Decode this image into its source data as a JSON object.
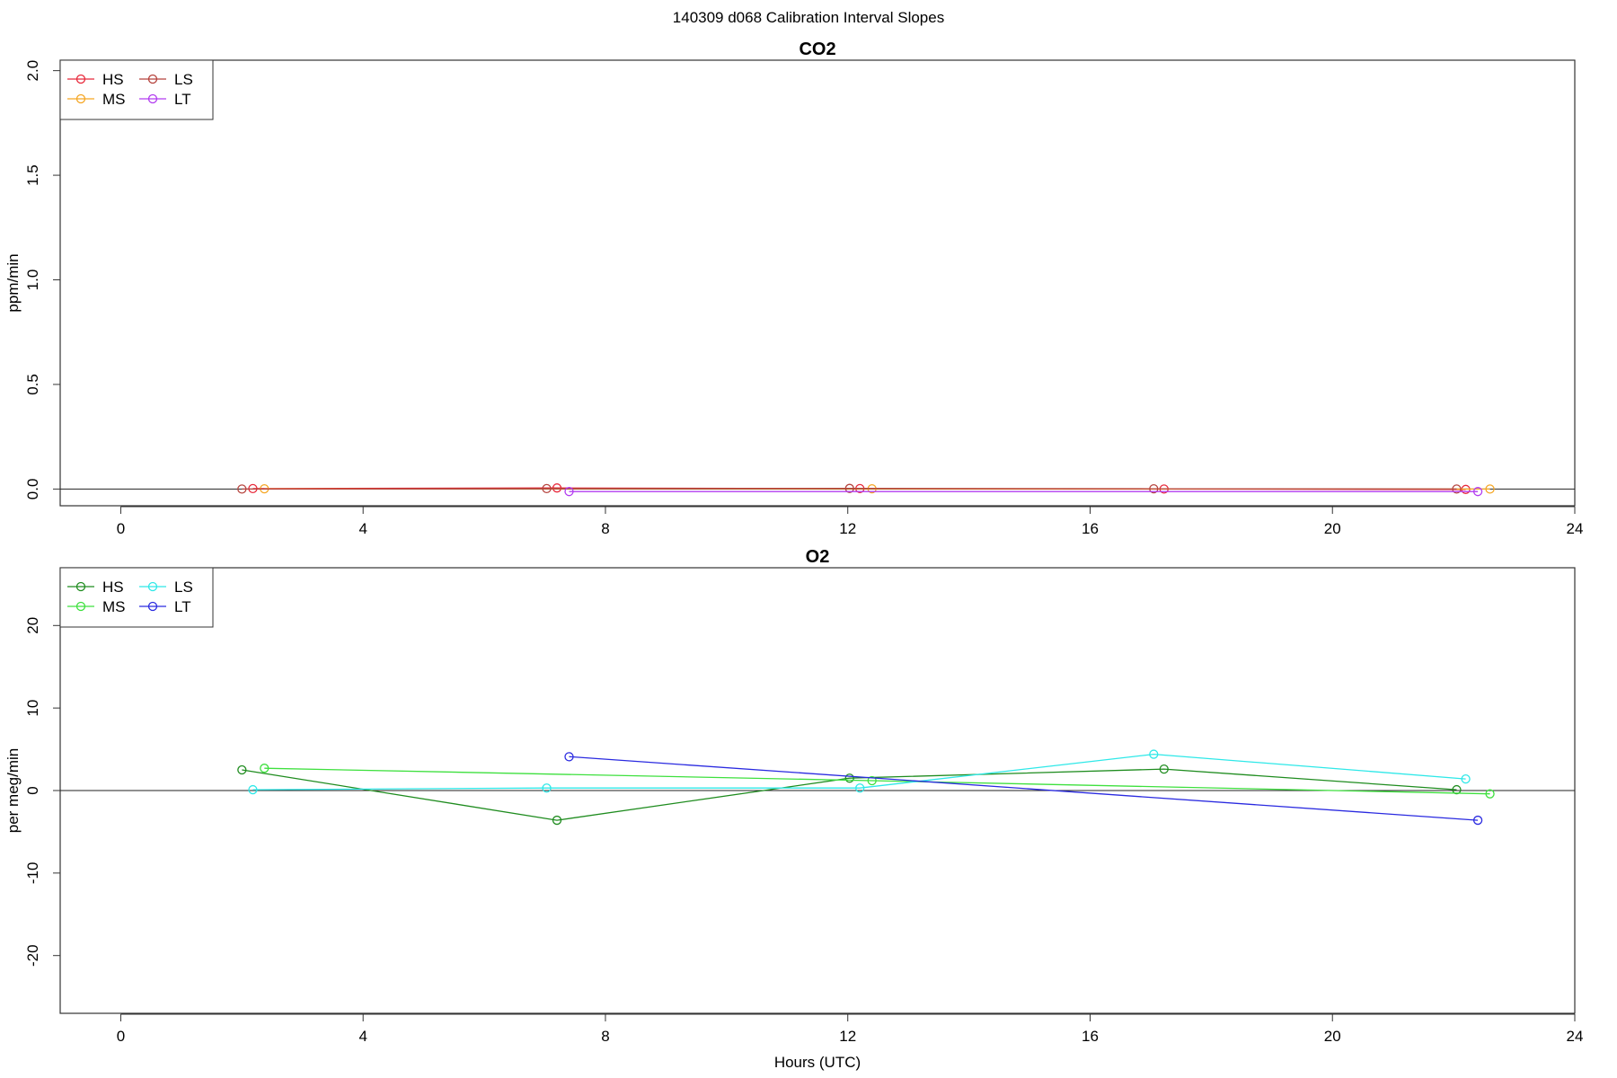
{
  "page_title": "140309   d068   Calibration Interval Slopes",
  "chart_data": [
    {
      "type": "line",
      "title": "CO2",
      "xlabel": "",
      "ylabel": "ppm/min",
      "xlim": [
        -1,
        24
      ],
      "ylim": [
        -0.08,
        2.05
      ],
      "xticks": [
        0,
        4,
        8,
        12,
        16,
        20,
        24
      ],
      "xtick_labels": [
        "0",
        "4",
        "8",
        "12",
        "16",
        "20",
        "24"
      ],
      "yticks": [
        0.0,
        0.5,
        1.0,
        1.5,
        2.0
      ],
      "ytick_labels": [
        "0.0",
        "0.5",
        "1.0",
        "1.5",
        "2.0"
      ],
      "hline": 0,
      "legend_position": "top-left",
      "series": [
        {
          "name": "HS",
          "color": "#e8283a",
          "x": [
            2.18,
            7.2,
            12.2,
            17.22,
            22.2
          ],
          "y": [
            0.002,
            0.005,
            0.002,
            0.0,
            -0.002
          ]
        },
        {
          "name": "MS",
          "color": "#f5a623",
          "x": [
            2.37,
            12.4,
            22.6
          ],
          "y": [
            0.001,
            0.001,
            0.0
          ]
        },
        {
          "name": "LS",
          "color": "#b5423c",
          "x": [
            2.0,
            7.03,
            12.03,
            17.05,
            22.05
          ],
          "y": [
            0.0,
            0.002,
            0.003,
            0.001,
            0.0
          ]
        },
        {
          "name": "LT",
          "color": "#b23cf0",
          "x": [
            7.4,
            22.4
          ],
          "y": [
            -0.012,
            -0.012
          ]
        }
      ]
    },
    {
      "type": "line",
      "title": "O2",
      "xlabel": "Hours (UTC)",
      "ylabel": "per meg/min",
      "xlim": [
        -1,
        24
      ],
      "ylim": [
        -27,
        27
      ],
      "xticks": [
        0,
        4,
        8,
        12,
        16,
        20,
        24
      ],
      "xtick_labels": [
        "0",
        "4",
        "8",
        "12",
        "16",
        "20",
        "24"
      ],
      "yticks": [
        -20,
        -10,
        0,
        10,
        20
      ],
      "ytick_labels": [
        "-20",
        "-10",
        "0",
        "10",
        "20"
      ],
      "hline": 0,
      "legend_position": "top-left",
      "series": [
        {
          "name": "HS",
          "color": "#1f8c1f",
          "x": [
            2.0,
            7.2,
            12.03,
            17.22,
            22.05
          ],
          "y": [
            2.5,
            -3.6,
            1.5,
            2.6,
            0.1
          ]
        },
        {
          "name": "MS",
          "color": "#3ee03e",
          "x": [
            2.37,
            12.4,
            22.6
          ],
          "y": [
            2.7,
            1.2,
            -0.4
          ]
        },
        {
          "name": "LS",
          "color": "#2ee8e8",
          "x": [
            2.18,
            7.03,
            12.2,
            17.05,
            22.2
          ],
          "y": [
            0.1,
            0.3,
            0.3,
            4.4,
            1.4
          ]
        },
        {
          "name": "LT",
          "color": "#2a2ae0",
          "x": [
            7.4,
            22.4
          ],
          "y": [
            4.1,
            -3.6
          ]
        }
      ]
    }
  ]
}
